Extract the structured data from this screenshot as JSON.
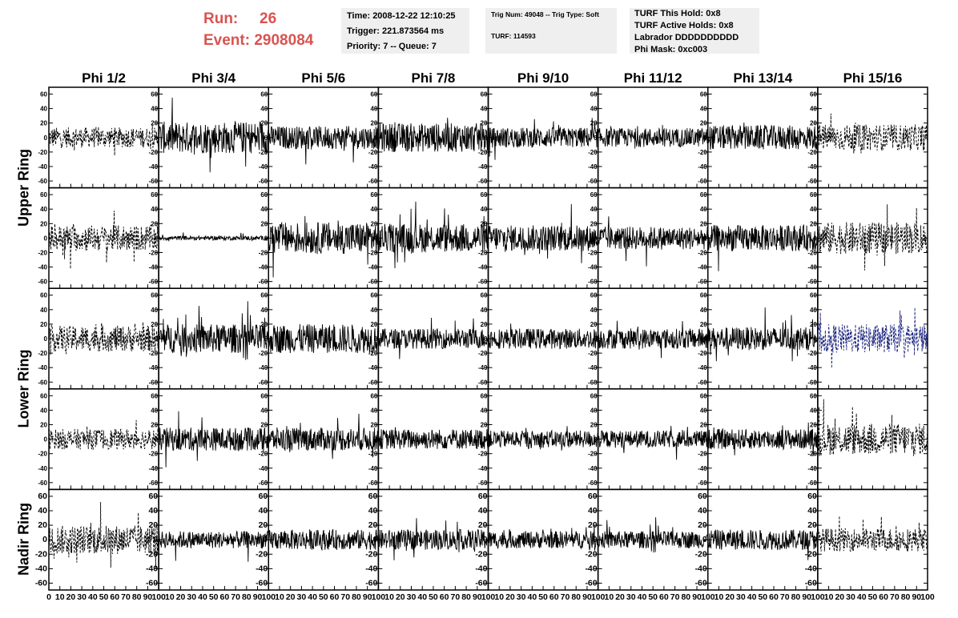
{
  "header": {
    "run_label": "Run:",
    "run_value": "26",
    "event_label": "Event:",
    "event_value": "2908084",
    "time": "Time: 2008-12-22 12:10:25",
    "trigger": "Trigger: 221.873564 ms",
    "priority": "Priority: 7 -- Queue: 7",
    "trig_num": "Trig Num: 49048 -- Trig Type: Soft",
    "turf": "TURF: 114593",
    "turf_this_hold": "TURF This Hold: 0x8",
    "turf_active_holds": "TURF Active Holds: 0x8",
    "labrador": "Labrador DDDDDDDDDD",
    "phi_mask": "Phi Mask: 0xc003",
    "accent_color": "#d9534f"
  },
  "chart_data": {
    "type": "line",
    "columns": [
      "Phi 1/2",
      "Phi 3/4",
      "Phi 5/6",
      "Phi 7/8",
      "Phi 9/10",
      "Phi 11/12",
      "Phi 13/14",
      "Phi 15/16"
    ],
    "rows": [
      "Upper Ring",
      "Upper Ring",
      "Lower Ring",
      "Lower Ring",
      "Nadir Ring"
    ],
    "row_labels": [
      "Upper Ring",
      "Lower Ring",
      "Nadir Ring"
    ],
    "xlim": [
      0,
      100
    ],
    "ylim": [
      -65,
      65
    ],
    "y_ticks": [
      -60,
      -40,
      -20,
      0,
      20,
      40,
      60
    ],
    "x_ticks": [
      0,
      10,
      20,
      30,
      40,
      50,
      60,
      70,
      80,
      90,
      100
    ],
    "x_tick_labels": [
      "0",
      "10",
      "20",
      "30",
      "40",
      "50",
      "60",
      "70",
      "80",
      "90",
      "100"
    ],
    "y_tick_labels": [
      "-60",
      "-40",
      "-20",
      "0",
      "20",
      "40",
      "60"
    ],
    "waveform_color": "#000000",
    "highlight_color": "#1a237e",
    "highlight_panel": {
      "row": 2,
      "col": 7
    },
    "dashed_columns": [
      0,
      7
    ],
    "amplitude": [
      [
        14,
        22,
        16,
        20,
        14,
        13,
        17,
        18
      ],
      [
        18,
        3,
        22,
        20,
        18,
        16,
        18,
        22
      ],
      [
        18,
        20,
        20,
        14,
        14,
        14,
        16,
        20
      ],
      [
        14,
        16,
        16,
        14,
        12,
        12,
        14,
        22
      ],
      [
        20,
        12,
        14,
        14,
        12,
        12,
        14,
        16
      ]
    ],
    "samples": 260
  }
}
